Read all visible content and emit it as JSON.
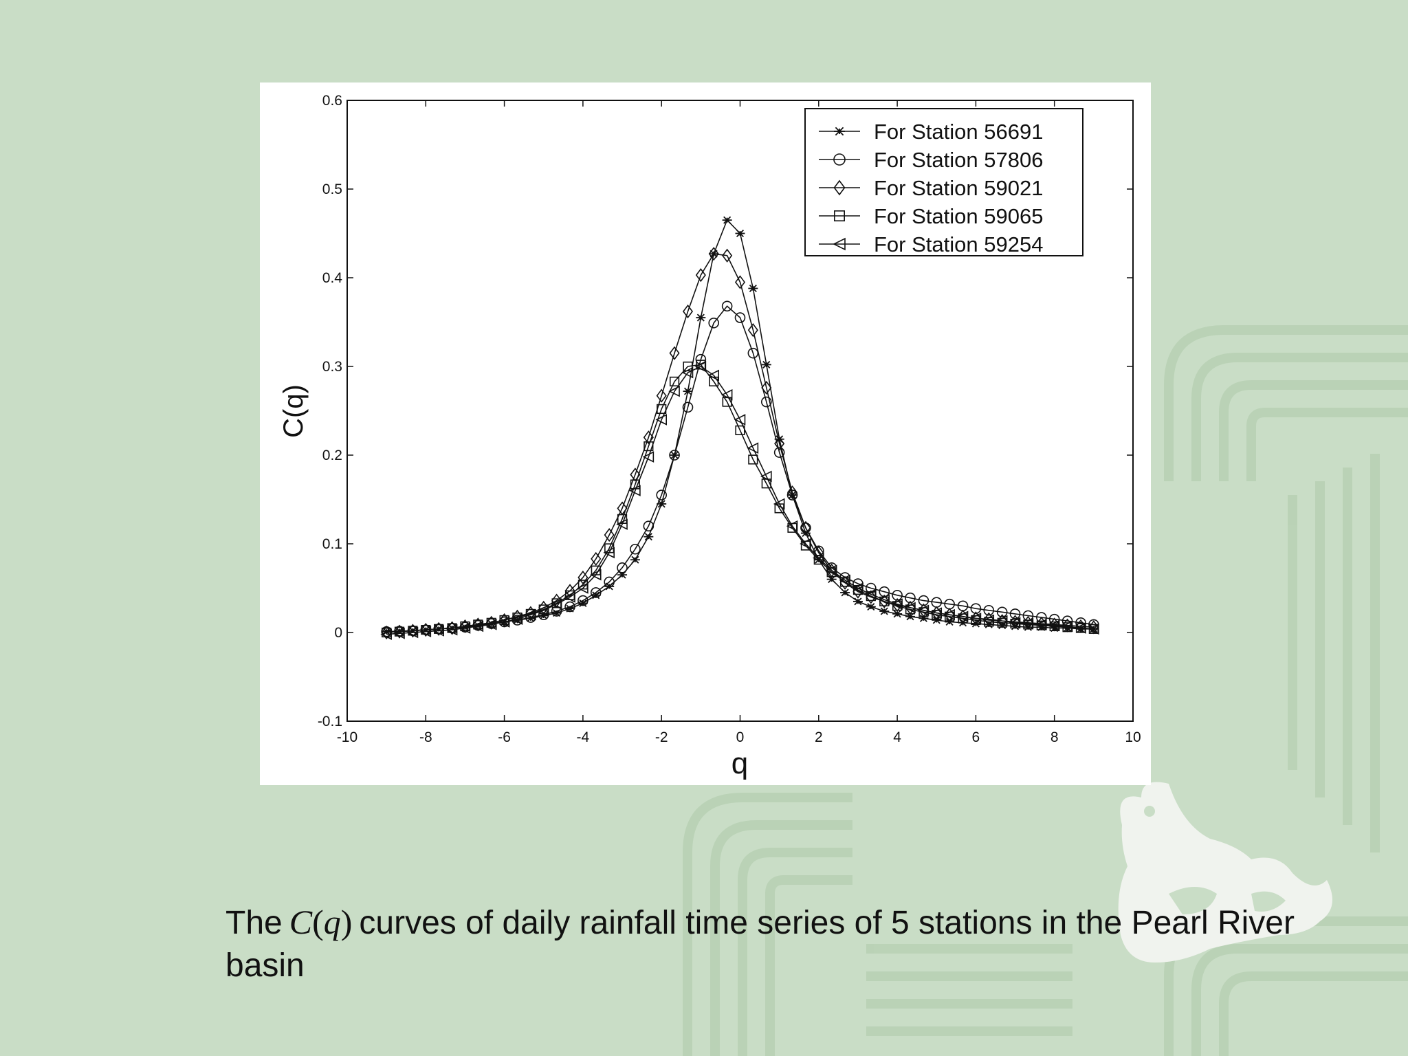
{
  "caption": {
    "prefix": "The",
    "math_c": "C",
    "math_open": "(",
    "math_q": "q",
    "math_close": ")",
    "suffix": "curves of daily rainfall time series of 5 stations in the Pearl River basin"
  },
  "colors": {
    "background": "#c9ddc6",
    "pattern": "#b3ceaf",
    "panel": "#ffffff",
    "ink": "#111111"
  },
  "chart_data": {
    "type": "line",
    "title": "",
    "xlabel": "q",
    "ylabel": "C(q)",
    "xlim": [
      -10,
      10
    ],
    "ylim": [
      -0.1,
      0.6
    ],
    "xticks": [
      -10,
      -8,
      -6,
      -4,
      -2,
      0,
      2,
      4,
      6,
      8,
      10
    ],
    "yticks": [
      -0.1,
      0,
      0.1,
      0.2,
      0.3,
      0.4,
      0.5,
      0.6
    ],
    "xtick_labels": [
      "-10",
      "-8",
      "-6",
      "-4",
      "-2",
      "0",
      "2",
      "4",
      "6",
      "8",
      "10"
    ],
    "ytick_labels": [
      "-0.1",
      "0",
      "0.1",
      "0.2",
      "0.3",
      "0.4",
      "0.5",
      "0.6"
    ],
    "grid": false,
    "legend_position": "top-right",
    "x": [
      -9,
      -8.67,
      -8.33,
      -8,
      -7.67,
      -7.33,
      -7,
      -6.67,
      -6.33,
      -6,
      -5.67,
      -5.33,
      -5,
      -4.67,
      -4.33,
      -4,
      -3.67,
      -3.33,
      -3,
      -2.67,
      -2.33,
      -2,
      -1.67,
      -1.33,
      -1,
      -0.67,
      -0.33,
      0,
      0.33,
      0.67,
      1,
      1.33,
      1.67,
      2,
      2.33,
      2.67,
      3,
      3.33,
      3.67,
      4,
      4.33,
      4.67,
      5,
      5.33,
      5.67,
      6,
      6.33,
      6.67,
      7,
      7.33,
      7.67,
      8,
      8.33,
      8.67,
      9
    ],
    "series": [
      {
        "name": "For Station 56691",
        "marker": "star",
        "values": [
          0.001,
          0.0015,
          0.002,
          0.003,
          0.004,
          0.005,
          0.006,
          0.008,
          0.01,
          0.012,
          0.014,
          0.016,
          0.019,
          0.022,
          0.027,
          0.033,
          0.042,
          0.052,
          0.065,
          0.082,
          0.108,
          0.145,
          0.2,
          0.272,
          0.355,
          0.427,
          0.465,
          0.45,
          0.388,
          0.302,
          0.218,
          0.155,
          0.112,
          0.082,
          0.06,
          0.045,
          0.035,
          0.029,
          0.024,
          0.021,
          0.018,
          0.016,
          0.014,
          0.012,
          0.011,
          0.01,
          0.009,
          0.008,
          0.007,
          0.006,
          0.006,
          0.005,
          0.005,
          0.004,
          0.004
        ]
      },
      {
        "name": "For Station 57806",
        "marker": "circle",
        "values": [
          0.001,
          0.0015,
          0.002,
          0.003,
          0.004,
          0.005,
          0.006,
          0.008,
          0.01,
          0.012,
          0.014,
          0.017,
          0.02,
          0.024,
          0.029,
          0.036,
          0.045,
          0.057,
          0.073,
          0.094,
          0.12,
          0.155,
          0.2,
          0.254,
          0.308,
          0.349,
          0.368,
          0.355,
          0.315,
          0.26,
          0.203,
          0.155,
          0.118,
          0.092,
          0.073,
          0.062,
          0.055,
          0.05,
          0.046,
          0.042,
          0.039,
          0.036,
          0.034,
          0.032,
          0.03,
          0.027,
          0.025,
          0.023,
          0.021,
          0.019,
          0.017,
          0.015,
          0.013,
          0.011,
          0.009
        ]
      },
      {
        "name": "For Station 59021",
        "marker": "diamond",
        "values": [
          0.0,
          0.001,
          0.002,
          0.003,
          0.004,
          0.005,
          0.007,
          0.009,
          0.011,
          0.014,
          0.018,
          0.022,
          0.028,
          0.036,
          0.047,
          0.062,
          0.083,
          0.11,
          0.14,
          0.178,
          0.22,
          0.267,
          0.315,
          0.362,
          0.403,
          0.427,
          0.425,
          0.395,
          0.341,
          0.276,
          0.213,
          0.158,
          0.118,
          0.09,
          0.07,
          0.056,
          0.046,
          0.04,
          0.035,
          0.031,
          0.028,
          0.025,
          0.022,
          0.02,
          0.018,
          0.016,
          0.015,
          0.013,
          0.012,
          0.011,
          0.01,
          0.009,
          0.008,
          0.007,
          0.006
        ]
      },
      {
        "name": "For Station 59065",
        "marker": "square",
        "values": [
          0.0,
          0.001,
          0.002,
          0.003,
          0.004,
          0.005,
          0.007,
          0.009,
          0.011,
          0.014,
          0.017,
          0.021,
          0.026,
          0.033,
          0.042,
          0.054,
          0.07,
          0.095,
          0.128,
          0.167,
          0.21,
          0.252,
          0.283,
          0.3,
          0.302,
          0.283,
          0.26,
          0.228,
          0.195,
          0.168,
          0.14,
          0.118,
          0.098,
          0.082,
          0.068,
          0.057,
          0.048,
          0.041,
          0.035,
          0.03,
          0.026,
          0.023,
          0.02,
          0.018,
          0.016,
          0.014,
          0.012,
          0.011,
          0.01,
          0.009,
          0.008,
          0.007,
          0.006,
          0.005,
          0.004
        ]
      },
      {
        "name": "For Station 59254",
        "marker": "triangle-left",
        "values": [
          -0.002,
          -0.001,
          0.0,
          0.001,
          0.002,
          0.003,
          0.005,
          0.007,
          0.009,
          0.012,
          0.015,
          0.02,
          0.025,
          0.032,
          0.04,
          0.05,
          0.065,
          0.09,
          0.122,
          0.16,
          0.198,
          0.24,
          0.272,
          0.293,
          0.3,
          0.29,
          0.268,
          0.24,
          0.208,
          0.176,
          0.145,
          0.12,
          0.1,
          0.084,
          0.07,
          0.059,
          0.05,
          0.043,
          0.037,
          0.032,
          0.028,
          0.025,
          0.022,
          0.02,
          0.018,
          0.016,
          0.014,
          0.013,
          0.011,
          0.01,
          0.009,
          0.008,
          0.007,
          0.005,
          0.004
        ]
      }
    ]
  }
}
